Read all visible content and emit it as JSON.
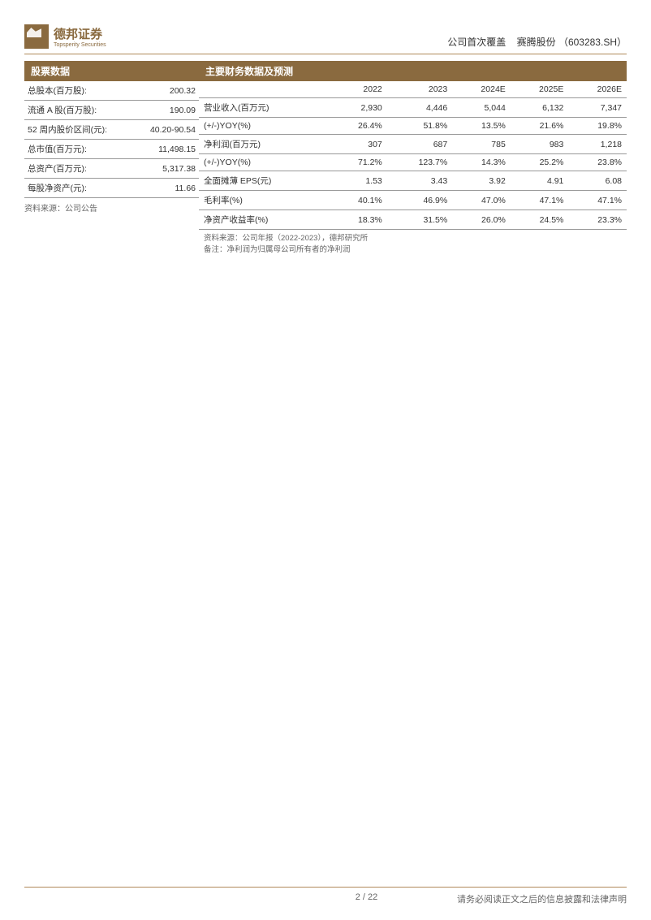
{
  "header": {
    "logo_main": "德邦证券",
    "logo_sub": "Topsperity Securities",
    "coverage_type": "公司首次覆盖",
    "company_name": "赛腾股份",
    "ticker_code": "（603283.SH）"
  },
  "stock_data": {
    "title": "股票数据",
    "rows": [
      {
        "label": "总股本(百万股):",
        "value": "200.32"
      },
      {
        "label": "流通 A 股(百万股):",
        "value": "190.09"
      },
      {
        "label": "52 周内股价区间(元):",
        "value": "40.20-90.54"
      },
      {
        "label": "总市值(百万元):",
        "value": "11,498.15"
      },
      {
        "label": "总资产(百万元):",
        "value": "5,317.38"
      },
      {
        "label": "每股净资产(元):",
        "value": "11.66"
      }
    ],
    "source": "资料来源：公司公告"
  },
  "financials": {
    "title": "主要财务数据及预测",
    "years": [
      "2022",
      "2023",
      "2024E",
      "2025E",
      "2026E"
    ],
    "rows": [
      {
        "label": "营业收入(百万元)",
        "v": [
          "2,930",
          "4,446",
          "5,044",
          "6,132",
          "7,347"
        ]
      },
      {
        "label": "(+/-)YOY(%)",
        "v": [
          "26.4%",
          "51.8%",
          "13.5%",
          "21.6%",
          "19.8%"
        ]
      },
      {
        "label": "净利润(百万元)",
        "v": [
          "307",
          "687",
          "785",
          "983",
          "1,218"
        ]
      },
      {
        "label": "(+/-)YOY(%)",
        "v": [
          "71.2%",
          "123.7%",
          "14.3%",
          "25.2%",
          "23.8%"
        ]
      },
      {
        "label": "全面摊薄 EPS(元)",
        "v": [
          "1.53",
          "3.43",
          "3.92",
          "4.91",
          "6.08"
        ]
      },
      {
        "label": "毛利率(%)",
        "v": [
          "40.1%",
          "46.9%",
          "47.0%",
          "47.1%",
          "47.1%"
        ]
      },
      {
        "label": "净资产收益率(%)",
        "v": [
          "18.3%",
          "31.5%",
          "26.0%",
          "24.5%",
          "23.3%"
        ]
      }
    ],
    "note1": "资料来源：公司年报（2022-2023），德邦研究所",
    "note2": "备注：净利润为归属母公司所有者的净利润"
  },
  "footer": {
    "page": "2 / 22",
    "disclaimer": "请务必阅读正文之后的信息披露和法律声明"
  },
  "colors": {
    "brand": "#8a6a3f",
    "rule": "#b08a5a",
    "text": "#333333",
    "muted": "#666666",
    "border": "#999999",
    "bg": "#ffffff"
  }
}
